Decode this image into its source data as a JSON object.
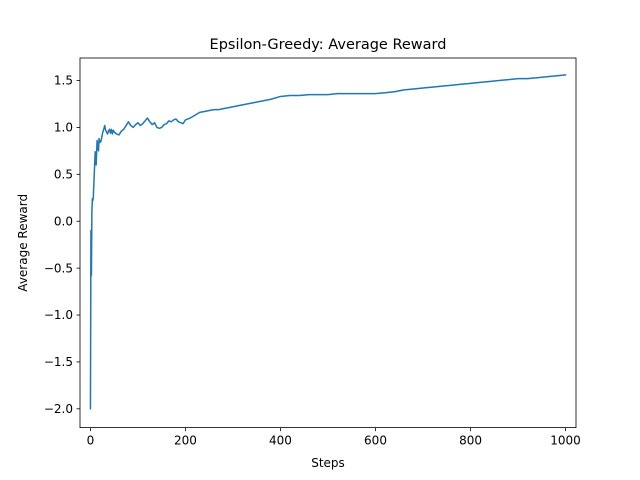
{
  "chart_data": {
    "type": "line",
    "title": "Epsilon-Greedy: Average Reward",
    "xlabel": "Steps",
    "ylabel": "Average Reward",
    "xlim": [
      -22,
      1022
    ],
    "ylim": [
      -2.2,
      1.74
    ],
    "xticks": [
      0,
      200,
      400,
      600,
      800,
      1000
    ],
    "xtick_labels": [
      "0",
      "200",
      "400",
      "600",
      "800",
      "1000"
    ],
    "yticks": [
      -2.0,
      -1.5,
      -1.0,
      -0.5,
      0.0,
      0.5,
      1.0,
      1.5
    ],
    "ytick_labels": [
      "−2.0",
      "−1.5",
      "−1.0",
      "−0.5",
      "0.0",
      "0.5",
      "1.0",
      "1.5"
    ],
    "grid": false,
    "legend": "none",
    "series": [
      {
        "color": "#1f77b4",
        "x": [
          0,
          1,
          2,
          3,
          4,
          5,
          6,
          8,
          10,
          12,
          14,
          15,
          17,
          18,
          20,
          22,
          24,
          26,
          28,
          30,
          32,
          34,
          36,
          38,
          40,
          42,
          44,
          46,
          48,
          50,
          55,
          60,
          65,
          70,
          75,
          80,
          85,
          90,
          95,
          100,
          105,
          110,
          115,
          120,
          125,
          130,
          135,
          140,
          145,
          150,
          155,
          160,
          165,
          170,
          175,
          180,
          185,
          190,
          195,
          200,
          210,
          220,
          230,
          240,
          250,
          260,
          270,
          280,
          290,
          300,
          320,
          340,
          360,
          380,
          400,
          420,
          440,
          460,
          480,
          500,
          520,
          540,
          560,
          580,
          600,
          620,
          640,
          660,
          680,
          700,
          720,
          740,
          760,
          780,
          800,
          820,
          840,
          860,
          880,
          900,
          920,
          940,
          960,
          980,
          1000
        ],
        "y": [
          -2.0,
          -0.1,
          -0.58,
          0.1,
          0.24,
          0.22,
          0.25,
          0.5,
          0.74,
          0.6,
          0.86,
          0.8,
          0.75,
          0.88,
          0.84,
          0.85,
          0.9,
          0.95,
          0.98,
          1.02,
          0.97,
          0.95,
          0.93,
          0.96,
          0.98,
          0.94,
          0.98,
          0.93,
          0.97,
          0.95,
          0.93,
          0.92,
          0.96,
          0.98,
          1.02,
          1.06,
          1.02,
          1.0,
          1.03,
          1.05,
          1.02,
          1.04,
          1.07,
          1.1,
          1.06,
          1.03,
          1.05,
          1.0,
          0.99,
          1.0,
          1.03,
          1.04,
          1.07,
          1.06,
          1.08,
          1.09,
          1.06,
          1.05,
          1.04,
          1.08,
          1.1,
          1.13,
          1.16,
          1.17,
          1.18,
          1.19,
          1.19,
          1.2,
          1.21,
          1.22,
          1.24,
          1.26,
          1.28,
          1.3,
          1.33,
          1.34,
          1.34,
          1.35,
          1.35,
          1.35,
          1.36,
          1.36,
          1.36,
          1.36,
          1.36,
          1.37,
          1.38,
          1.4,
          1.41,
          1.42,
          1.43,
          1.44,
          1.45,
          1.46,
          1.47,
          1.48,
          1.49,
          1.5,
          1.51,
          1.52,
          1.52,
          1.53,
          1.54,
          1.55,
          1.56
        ]
      }
    ]
  }
}
